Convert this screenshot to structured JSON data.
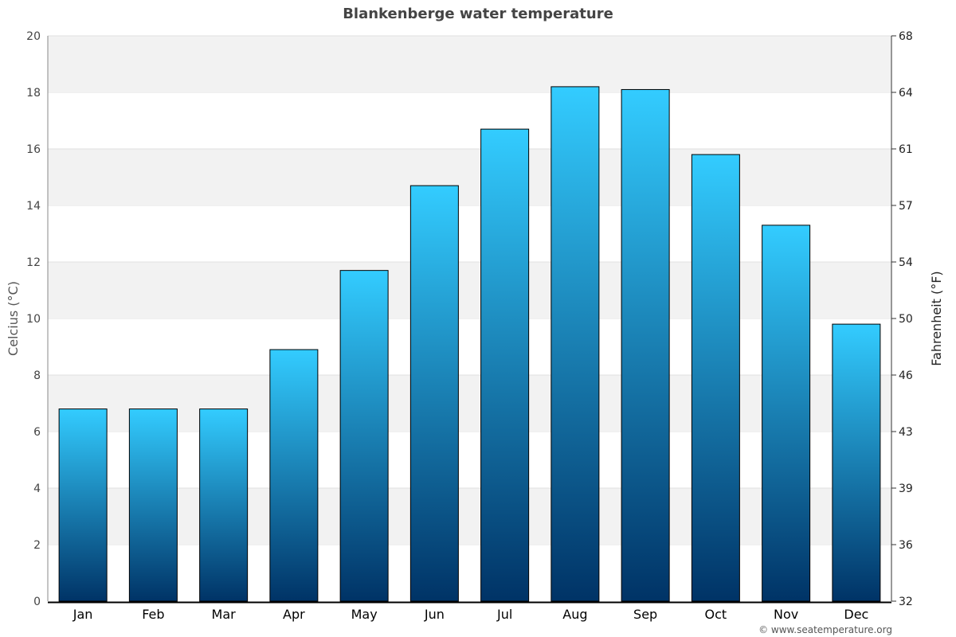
{
  "chart_data": {
    "type": "bar",
    "title": "Blankenberge water temperature",
    "categories": [
      "Jan",
      "Feb",
      "Mar",
      "Apr",
      "May",
      "Jun",
      "Jul",
      "Aug",
      "Sep",
      "Oct",
      "Nov",
      "Dec"
    ],
    "values": [
      6.8,
      6.8,
      6.8,
      8.9,
      11.7,
      14.7,
      16.7,
      18.2,
      18.1,
      15.8,
      13.3,
      9.8
    ],
    "ylabel": "Celcius (°C)",
    "ylabel_right": "Fahrenheit (°F)",
    "ylim": [
      0,
      20
    ],
    "yticks": [
      0,
      2,
      4,
      6,
      8,
      10,
      12,
      14,
      16,
      18,
      20
    ],
    "yticks_right": [
      32,
      36,
      39,
      43,
      46,
      50,
      54,
      57,
      61,
      64,
      68
    ],
    "grid": true,
    "colors": {
      "bar_top": "#33ccff",
      "bar_bottom": "#003366",
      "band": "#f2f2f2"
    }
  },
  "credit": "© www.seatemperature.org"
}
